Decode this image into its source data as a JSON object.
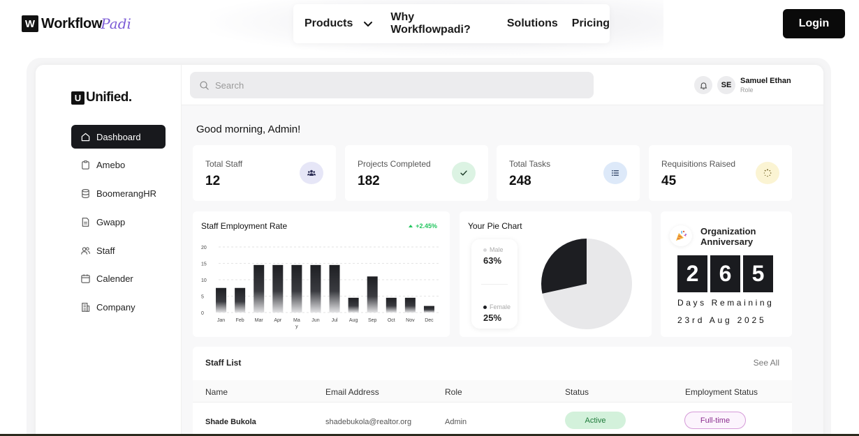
{
  "site": {
    "logo_letter": "W",
    "logo_text": "Workflow",
    "logo_script": "Padi",
    "nav": [
      "Products",
      "Why Workflowpadi?",
      "Solutions",
      "Pricing"
    ],
    "login_label": "Login"
  },
  "app": {
    "logo_letter": "U",
    "logo_text": "Unified.",
    "menu": [
      {
        "label": "Dashboard",
        "icon": "home-icon",
        "active": true
      },
      {
        "label": "Amebo",
        "icon": "clipboard-icon"
      },
      {
        "label": "BoomerangHR",
        "icon": "database-icon"
      },
      {
        "label": "Gwapp",
        "icon": "document-icon"
      },
      {
        "label": "Staff",
        "icon": "users-icon"
      },
      {
        "label": "Calender",
        "icon": "calendar-icon"
      },
      {
        "label": "Company",
        "icon": "building-icon"
      }
    ],
    "search_placeholder": "Search",
    "user": {
      "initials": "SE",
      "name": "Samuel Ethan",
      "role": "Role"
    },
    "greeting": "Good morning, Admin!",
    "stats": [
      {
        "label": "Total Staff",
        "value": "12",
        "icon": "team-icon",
        "color": "#e6e6f7"
      },
      {
        "label": "Projects Completed",
        "value": "182",
        "icon": "check-icon",
        "color": "#dcf3e3"
      },
      {
        "label": "Total Tasks",
        "value": "248",
        "icon": "list-icon",
        "color": "#dde9f9"
      },
      {
        "label": "Requisitions Raised",
        "value": "45",
        "icon": "loader-icon",
        "color": "#fbf4d3"
      }
    ],
    "employment": {
      "title": "Staff Employment Rate",
      "change": "+2.45%",
      "change_color": "#22c55e"
    },
    "pie": {
      "title": "Your Pie Chart"
    },
    "anniversary": {
      "title_line1": "Organization",
      "title_line2": "Anniversary",
      "digits": [
        "2",
        "6",
        "5"
      ],
      "days_label": "Days Remaining",
      "date": "23rd Aug 2025"
    },
    "staff_list": {
      "title": "Staff List",
      "see_all": "See All",
      "columns": [
        "Name",
        "Email Address",
        "Role",
        "Status",
        "Employment Status"
      ],
      "rows": [
        {
          "name": "Shade Bukola",
          "email": "shadebukola@realtor.org",
          "role": "Admin",
          "status": "Active",
          "employment": "Full-time"
        }
      ]
    }
  },
  "chart_data": [
    {
      "type": "bar",
      "title": "Staff Employment Rate",
      "categories": [
        "Jan",
        "Feb",
        "Mar",
        "Apr",
        "May",
        "Jun",
        "Jul",
        "Aug",
        "Sep",
        "Oct",
        "Nov",
        "Dec"
      ],
      "values": [
        7.5,
        7.5,
        14.5,
        14.5,
        14.5,
        14.5,
        14.5,
        4.5,
        11,
        4.5,
        4.5,
        2
      ],
      "yticks": [
        0,
        5,
        10,
        15,
        20
      ],
      "ylim": [
        0,
        20
      ],
      "grid": true
    },
    {
      "type": "pie",
      "title": "Your Pie Chart",
      "categories": [
        "Male",
        "Female"
      ],
      "values": [
        63,
        25
      ],
      "labels": [
        "63%",
        "25%"
      ],
      "colors": [
        "#e8e8ea",
        "#1d1e22"
      ]
    }
  ]
}
